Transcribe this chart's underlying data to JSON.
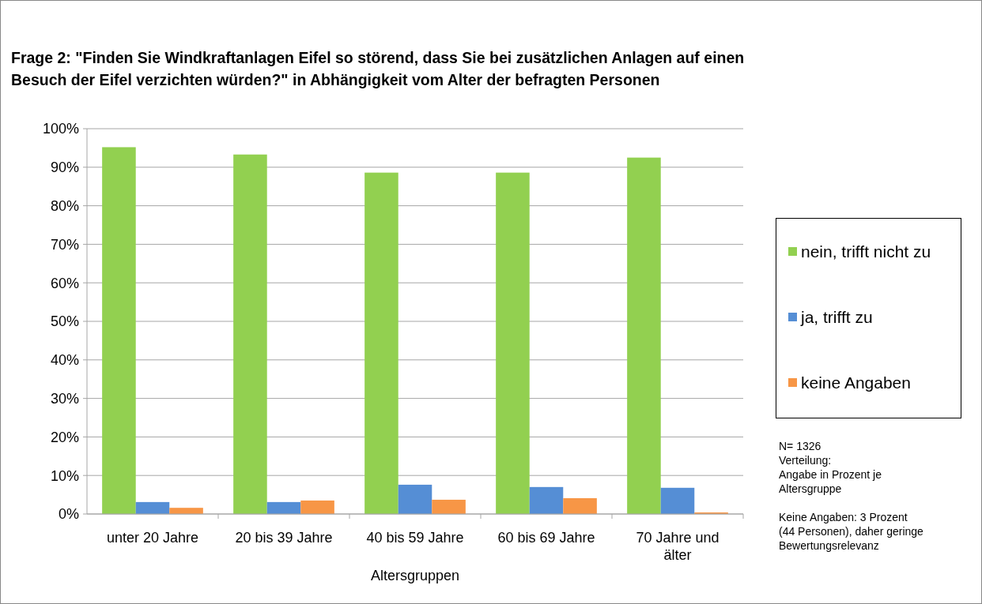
{
  "chart_data": {
    "type": "bar",
    "title": "Frage 2: \"Finden Sie Windkraftanlagen Eifel so störend, dass Sie bei zusätzlichen Anlagen auf einen Besuch der Eifel verzichten würden?\" in Abhängigkeit vom Alter der befragten Personen",
    "xlabel": "Altersgruppen",
    "categories": [
      "unter 20 Jahre",
      "20 bis 39 Jahre",
      "40 bis 59 Jahre",
      "60 bis 69 Jahre",
      "70 Jahre und älter"
    ],
    "series": [
      {
        "name": "nein, trifft nicht zu",
        "color": "#92d050",
        "values": [
          95.2,
          93.3,
          88.6,
          88.6,
          92.5
        ]
      },
      {
        "name": "ja, trifft zu",
        "color": "#558ed5",
        "values": [
          3.1,
          3.1,
          7.6,
          7.0,
          6.8
        ]
      },
      {
        "name": "keine Angaben",
        "color": "#f79646",
        "values": [
          1.6,
          3.5,
          3.7,
          4.1,
          0.4
        ]
      }
    ],
    "ylim": [
      0,
      100
    ],
    "yticks": [
      {
        "value": 0,
        "label": "0%"
      },
      {
        "value": 10,
        "label": "10%"
      },
      {
        "value": 20,
        "label": "20%"
      },
      {
        "value": 30,
        "label": "30%"
      },
      {
        "value": 40,
        "label": "40%"
      },
      {
        "value": 50,
        "label": "50%"
      },
      {
        "value": 60,
        "label": "60%"
      },
      {
        "value": 70,
        "label": "70%"
      },
      {
        "value": 80,
        "label": "80%"
      },
      {
        "value": 90,
        "label": "90%"
      },
      {
        "value": 100,
        "label": "100%"
      }
    ],
    "grid": "y",
    "legend": "right",
    "annotations": [
      "N= 1326\nVerteilung:\nAngabe in Prozent je Altersgruppe",
      "Keine Angaben:  3 Prozent\n(44 Personen), daher geringe\nBewertungsrelevanz"
    ]
  }
}
